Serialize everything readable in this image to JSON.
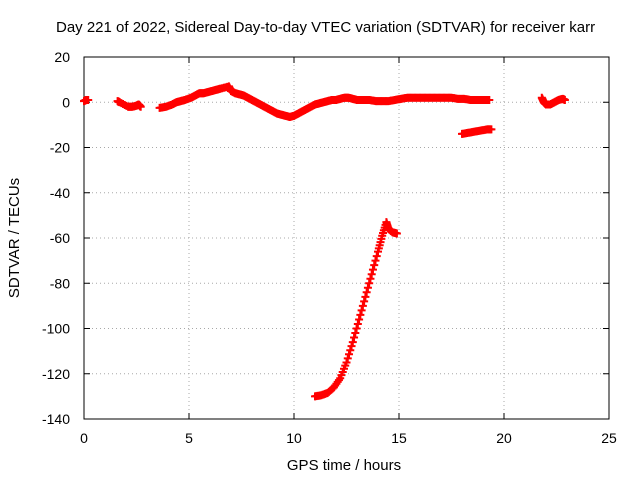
{
  "chart_data": {
    "type": "scatter",
    "title": "Day 221 of 2022, Sidereal Day-to-day VTEC variation (SDTVAR) for receiver karr",
    "xlabel": "GPS time / hours",
    "ylabel": "SDTVAR / TECUs",
    "xlim": [
      0,
      25
    ],
    "ylim": [
      -140,
      20
    ],
    "x_ticks": [
      0,
      5,
      10,
      15,
      20,
      25
    ],
    "y_ticks": [
      -140,
      -120,
      -100,
      -80,
      -60,
      -40,
      -20,
      0,
      20
    ],
    "grid": true,
    "marker": "+",
    "series_color": "#ff0000",
    "series": [
      {
        "name": "main-track",
        "points": [
          [
            0.0,
            0.5
          ],
          [
            0.1,
            1.0
          ],
          [
            0.2,
            1.0
          ],
          [
            1.6,
            0.5
          ],
          [
            1.7,
            0.0
          ],
          [
            2.1,
            -2.0
          ],
          [
            2.3,
            -2.0
          ],
          [
            2.5,
            -1.5
          ],
          [
            2.6,
            -1.0
          ],
          [
            2.7,
            -2.0
          ],
          [
            3.6,
            -2.5
          ],
          [
            3.9,
            -2.0
          ],
          [
            4.2,
            -1.0
          ],
          [
            4.4,
            0.0
          ],
          [
            4.6,
            0.5
          ],
          [
            4.8,
            1.0
          ],
          [
            5.1,
            2.0
          ],
          [
            5.3,
            3.0
          ],
          [
            5.5,
            4.0
          ],
          [
            5.7,
            4.0
          ],
          [
            5.9,
            4.5
          ],
          [
            6.1,
            5.0
          ],
          [
            6.3,
            5.5
          ],
          [
            6.5,
            6.0
          ],
          [
            6.9,
            7.0
          ],
          [
            7.0,
            5.0
          ],
          [
            7.2,
            4.0
          ],
          [
            7.4,
            3.5
          ],
          [
            7.6,
            3.0
          ],
          [
            7.8,
            2.0
          ],
          [
            8.0,
            1.0
          ],
          [
            8.2,
            0.0
          ],
          [
            8.4,
            -1.0
          ],
          [
            8.6,
            -2.0
          ],
          [
            8.8,
            -3.0
          ],
          [
            9.0,
            -4.0
          ],
          [
            9.2,
            -5.0
          ],
          [
            9.4,
            -5.5
          ],
          [
            9.6,
            -6.0
          ],
          [
            9.8,
            -6.5
          ],
          [
            10.0,
            -6.0
          ],
          [
            10.2,
            -5.0
          ],
          [
            10.4,
            -4.0
          ],
          [
            10.6,
            -3.0
          ],
          [
            10.8,
            -2.0
          ],
          [
            11.0,
            -1.0
          ],
          [
            11.2,
            -0.5
          ],
          [
            11.4,
            0.0
          ],
          [
            11.6,
            0.5
          ],
          [
            11.8,
            1.0
          ],
          [
            12.0,
            1.0
          ],
          [
            12.2,
            1.5
          ],
          [
            12.4,
            2.0
          ],
          [
            12.6,
            2.0
          ],
          [
            12.8,
            1.5
          ],
          [
            13.0,
            1.0
          ],
          [
            13.3,
            1.0
          ],
          [
            13.6,
            1.0
          ],
          [
            13.9,
            0.5
          ],
          [
            14.2,
            0.5
          ],
          [
            14.5,
            0.5
          ],
          [
            14.8,
            1.0
          ],
          [
            15.1,
            1.5
          ],
          [
            15.4,
            2.0
          ],
          [
            15.7,
            2.0
          ],
          [
            16.0,
            2.0
          ],
          [
            16.3,
            2.0
          ],
          [
            16.6,
            2.0
          ],
          [
            16.9,
            2.0
          ],
          [
            17.2,
            2.0
          ],
          [
            17.5,
            2.0
          ],
          [
            17.8,
            1.5
          ],
          [
            18.1,
            1.5
          ],
          [
            18.4,
            1.0
          ],
          [
            18.7,
            1.0
          ],
          [
            19.0,
            1.0
          ],
          [
            19.3,
            1.0
          ],
          [
            21.8,
            2.0
          ],
          [
            21.9,
            0.0
          ],
          [
            22.0,
            -1.0
          ],
          [
            22.2,
            -1.0
          ],
          [
            22.4,
            0.0
          ],
          [
            22.6,
            1.0
          ],
          [
            22.8,
            1.5
          ],
          [
            22.9,
            1.0
          ]
        ]
      },
      {
        "name": "offset-segment",
        "points": [
          [
            18.0,
            -14.0
          ],
          [
            18.3,
            -13.5
          ],
          [
            18.6,
            -13.0
          ],
          [
            18.9,
            -12.5
          ],
          [
            19.2,
            -12.0
          ],
          [
            19.4,
            -12.0
          ]
        ]
      },
      {
        "name": "steep-arc",
        "points": [
          [
            11.0,
            -130.0
          ],
          [
            11.3,
            -129.5
          ],
          [
            11.6,
            -128.5
          ],
          [
            11.9,
            -126.0
          ],
          [
            12.2,
            -122.0
          ],
          [
            12.5,
            -115.0
          ],
          [
            12.8,
            -106.0
          ],
          [
            13.1,
            -96.0
          ],
          [
            13.4,
            -86.0
          ],
          [
            13.7,
            -76.0
          ],
          [
            14.0,
            -66.0
          ],
          [
            14.2,
            -59.0
          ],
          [
            14.4,
            -53.0
          ],
          [
            14.5,
            -56.0
          ],
          [
            14.7,
            -57.5
          ],
          [
            14.9,
            -58.0
          ]
        ]
      }
    ]
  }
}
